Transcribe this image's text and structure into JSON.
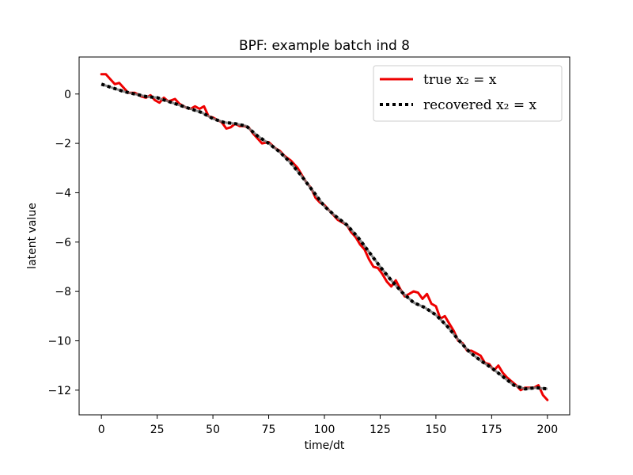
{
  "chart_data": {
    "type": "line",
    "title": "BPF: example batch ind 8",
    "xlabel": "time/dt",
    "ylabel": "latent value",
    "xlim": [
      -10,
      210
    ],
    "ylim": [
      -13,
      1.5
    ],
    "xticks": [
      0,
      25,
      50,
      75,
      100,
      125,
      150,
      175,
      200
    ],
    "yticks": [
      0,
      -2,
      -4,
      -6,
      -8,
      -10,
      -12
    ],
    "ytick_labels": [
      "0",
      "−2",
      "−4",
      "−6",
      "−8",
      "−10",
      "−12"
    ],
    "legend_position": "top-right",
    "grid": false,
    "series": [
      {
        "name": "true x₂ = x",
        "color": "#ee0000",
        "style": "solid",
        "points": [
          [
            0,
            0.8
          ],
          [
            2,
            0.8
          ],
          [
            4,
            0.6
          ],
          [
            6,
            0.4
          ],
          [
            8,
            0.45
          ],
          [
            10,
            0.25
          ],
          [
            12,
            0.05
          ],
          [
            15,
            0.05
          ],
          [
            18,
            -0.1
          ],
          [
            20,
            -0.15
          ],
          [
            22,
            -0.05
          ],
          [
            24,
            -0.25
          ],
          [
            26,
            -0.35
          ],
          [
            28,
            -0.15
          ],
          [
            30,
            -0.3
          ],
          [
            33,
            -0.2
          ],
          [
            35,
            -0.4
          ],
          [
            38,
            -0.55
          ],
          [
            40,
            -0.6
          ],
          [
            42,
            -0.5
          ],
          [
            44,
            -0.6
          ],
          [
            46,
            -0.5
          ],
          [
            48,
            -0.9
          ],
          [
            50,
            -0.95
          ],
          [
            52,
            -1.05
          ],
          [
            54,
            -1.15
          ],
          [
            56,
            -1.4
          ],
          [
            58,
            -1.35
          ],
          [
            60,
            -1.2
          ],
          [
            62,
            -1.3
          ],
          [
            64,
            -1.3
          ],
          [
            66,
            -1.35
          ],
          [
            68,
            -1.6
          ],
          [
            70,
            -1.8
          ],
          [
            72,
            -2.0
          ],
          [
            75,
            -1.95
          ],
          [
            78,
            -2.2
          ],
          [
            80,
            -2.3
          ],
          [
            82,
            -2.5
          ],
          [
            85,
            -2.7
          ],
          [
            88,
            -3.0
          ],
          [
            90,
            -3.3
          ],
          [
            92,
            -3.6
          ],
          [
            94,
            -3.8
          ],
          [
            96,
            -4.2
          ],
          [
            98,
            -4.4
          ],
          [
            100,
            -4.5
          ],
          [
            102,
            -4.7
          ],
          [
            104,
            -4.9
          ],
          [
            106,
            -5.1
          ],
          [
            108,
            -5.2
          ],
          [
            110,
            -5.3
          ],
          [
            112,
            -5.6
          ],
          [
            114,
            -5.8
          ],
          [
            116,
            -6.1
          ],
          [
            118,
            -6.3
          ],
          [
            120,
            -6.7
          ],
          [
            122,
            -7.0
          ],
          [
            124,
            -7.05
          ],
          [
            126,
            -7.3
          ],
          [
            128,
            -7.6
          ],
          [
            130,
            -7.8
          ],
          [
            132,
            -7.55
          ],
          [
            134,
            -7.9
          ],
          [
            136,
            -8.2
          ],
          [
            138,
            -8.1
          ],
          [
            140,
            -8.0
          ],
          [
            142,
            -8.05
          ],
          [
            144,
            -8.3
          ],
          [
            146,
            -8.1
          ],
          [
            148,
            -8.5
          ],
          [
            150,
            -8.6
          ],
          [
            152,
            -9.1
          ],
          [
            154,
            -9.0
          ],
          [
            156,
            -9.3
          ],
          [
            158,
            -9.6
          ],
          [
            160,
            -10.0
          ],
          [
            162,
            -10.1
          ],
          [
            164,
            -10.4
          ],
          [
            166,
            -10.4
          ],
          [
            168,
            -10.5
          ],
          [
            170,
            -10.6
          ],
          [
            172,
            -10.9
          ],
          [
            174,
            -10.95
          ],
          [
            176,
            -11.2
          ],
          [
            178,
            -11.0
          ],
          [
            180,
            -11.3
          ],
          [
            182,
            -11.5
          ],
          [
            184,
            -11.65
          ],
          [
            186,
            -11.8
          ],
          [
            188,
            -12.0
          ],
          [
            190,
            -11.9
          ],
          [
            192,
            -11.9
          ],
          [
            194,
            -11.9
          ],
          [
            196,
            -11.8
          ],
          [
            198,
            -12.2
          ],
          [
            200,
            -12.4
          ]
        ]
      },
      {
        "name": "recovered x₂ = x",
        "color": "#000000",
        "style": "dotted",
        "points": [
          [
            0,
            0.4
          ],
          [
            5,
            0.25
          ],
          [
            10,
            0.1
          ],
          [
            15,
            0.0
          ],
          [
            20,
            -0.1
          ],
          [
            25,
            -0.15
          ],
          [
            30,
            -0.3
          ],
          [
            35,
            -0.45
          ],
          [
            40,
            -0.6
          ],
          [
            45,
            -0.75
          ],
          [
            50,
            -1.0
          ],
          [
            55,
            -1.15
          ],
          [
            60,
            -1.2
          ],
          [
            65,
            -1.3
          ],
          [
            70,
            -1.7
          ],
          [
            75,
            -2.0
          ],
          [
            80,
            -2.35
          ],
          [
            85,
            -2.8
          ],
          [
            90,
            -3.35
          ],
          [
            95,
            -3.95
          ],
          [
            100,
            -4.55
          ],
          [
            105,
            -4.95
          ],
          [
            110,
            -5.3
          ],
          [
            115,
            -5.8
          ],
          [
            120,
            -6.4
          ],
          [
            125,
            -7.0
          ],
          [
            130,
            -7.55
          ],
          [
            135,
            -8.05
          ],
          [
            140,
            -8.45
          ],
          [
            145,
            -8.65
          ],
          [
            150,
            -8.95
          ],
          [
            155,
            -9.4
          ],
          [
            160,
            -9.95
          ],
          [
            165,
            -10.45
          ],
          [
            170,
            -10.8
          ],
          [
            175,
            -11.1
          ],
          [
            180,
            -11.45
          ],
          [
            185,
            -11.8
          ],
          [
            190,
            -11.95
          ],
          [
            195,
            -11.9
          ],
          [
            200,
            -11.95
          ]
        ]
      }
    ]
  }
}
